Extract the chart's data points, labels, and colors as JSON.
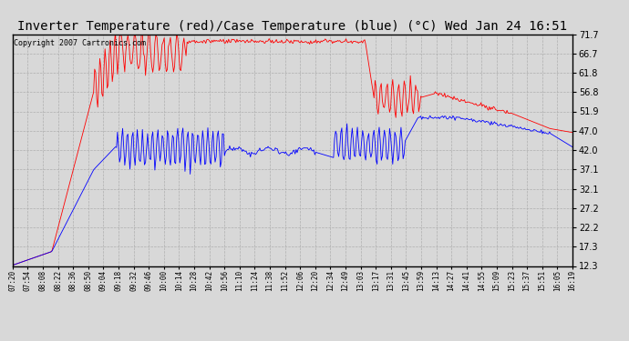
{
  "title": "Inverter Temperature (red)/Case Temperature (blue) (°C) Wed Jan 24 16:51",
  "copyright": "Copyright 2007 Cartronics.com",
  "background_color": "#d8d8d8",
  "plot_background": "#d8d8d8",
  "y_ticks": [
    12.3,
    17.3,
    22.2,
    27.2,
    32.1,
    37.1,
    42.0,
    47.0,
    51.9,
    56.8,
    61.8,
    66.7,
    71.7
  ],
  "ylim": [
    12.3,
    71.7
  ],
  "x_labels": [
    "07:20",
    "07:54",
    "08:08",
    "08:22",
    "08:36",
    "08:50",
    "09:04",
    "09:18",
    "09:32",
    "09:46",
    "10:00",
    "10:14",
    "10:28",
    "10:42",
    "10:56",
    "11:10",
    "11:24",
    "11:38",
    "11:52",
    "12:06",
    "12:20",
    "12:34",
    "12:49",
    "13:03",
    "13:17",
    "13:31",
    "13:45",
    "13:59",
    "14:13",
    "14:27",
    "14:41",
    "14:55",
    "15:09",
    "15:23",
    "15:37",
    "15:51",
    "16:05",
    "16:19"
  ],
  "red_color": "#ff0000",
  "blue_color": "#0000ff",
  "grid_color": "#aaaaaa",
  "title_fontsize": 10,
  "copyright_fontsize": 6
}
